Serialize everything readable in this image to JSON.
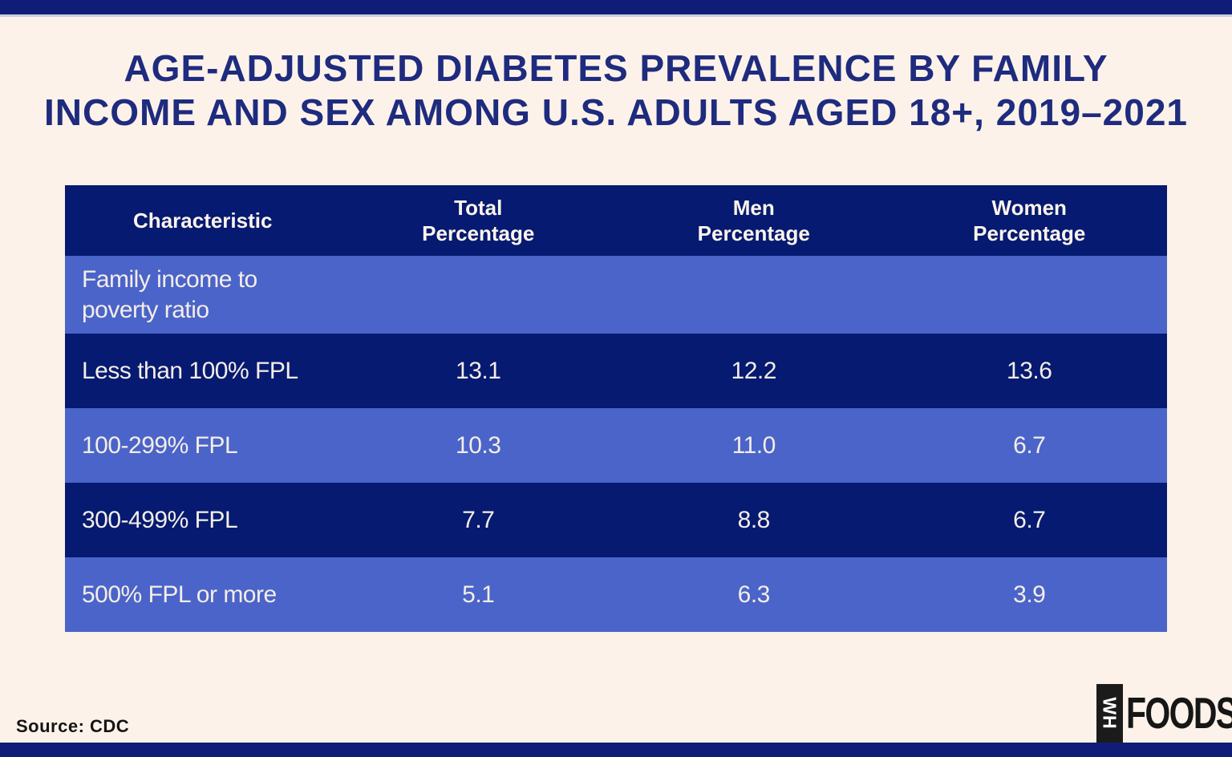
{
  "page": {
    "title_line1": "AGE-ADJUSTED DIABETES PREVALENCE BY FAMILY",
    "title_line2": "INCOME AND SEX AMONG U.S. ADULTS AGED 18+, 2019–2021",
    "source": "Source: CDC",
    "logo": {
      "vertical_text": "WH",
      "main_text": "FOODS"
    }
  },
  "colors": {
    "bar_navy": "#101d78",
    "table_dark_navy": "#051a70",
    "table_light_blue": "#4a64c9",
    "background_cream": "#fdf2e9",
    "title_navy": "#1e2b7e",
    "table_text_cream": "#f4ede7",
    "source_text": "#141414",
    "logo_black": "#1b1b1b"
  },
  "table": {
    "headers": [
      "Characteristic",
      "Total Percentage",
      "Men Percentage",
      "Women Percentage"
    ],
    "section_label": "Family income to poverty ratio",
    "rows": [
      {
        "label": "Less than 100% FPL",
        "total": "13.1",
        "men": "12.2",
        "women": "13.6"
      },
      {
        "label": "100-299% FPL",
        "total": "10.3",
        "men": "11.0",
        "women": "6.7"
      },
      {
        "label": "300-499% FPL",
        "total": "7.7",
        "men": "8.8",
        "women": "6.7"
      },
      {
        "label": "500% FPL or more",
        "total": "5.1",
        "men": "6.3",
        "women": "3.9"
      }
    ]
  },
  "chart_data": {
    "type": "table",
    "title": "AGE-ADJUSTED DIABETES PREVALENCE BY FAMILY INCOME AND SEX AMONG U.S. ADULTS AGED 18+, 2019–2021",
    "columns": [
      "Characteristic",
      "Total Percentage",
      "Men Percentage",
      "Women Percentage"
    ],
    "section": "Family income to poverty ratio",
    "rows": [
      {
        "characteristic": "Less than 100% FPL",
        "total_percentage": 13.1,
        "men_percentage": 12.2,
        "women_percentage": 13.6
      },
      {
        "characteristic": "100-299% FPL",
        "total_percentage": 10.3,
        "men_percentage": 11.0,
        "women_percentage": 6.7
      },
      {
        "characteristic": "300-499% FPL",
        "total_percentage": 7.7,
        "men_percentage": 8.8,
        "women_percentage": 6.7
      },
      {
        "characteristic": "500% FPL or more",
        "total_percentage": 5.1,
        "men_percentage": 6.3,
        "women_percentage": 3.9
      }
    ],
    "source": "CDC",
    "layout": {
      "row_striping": [
        "dark-navy",
        "light-blue"
      ],
      "header_background": "dark-navy"
    }
  }
}
